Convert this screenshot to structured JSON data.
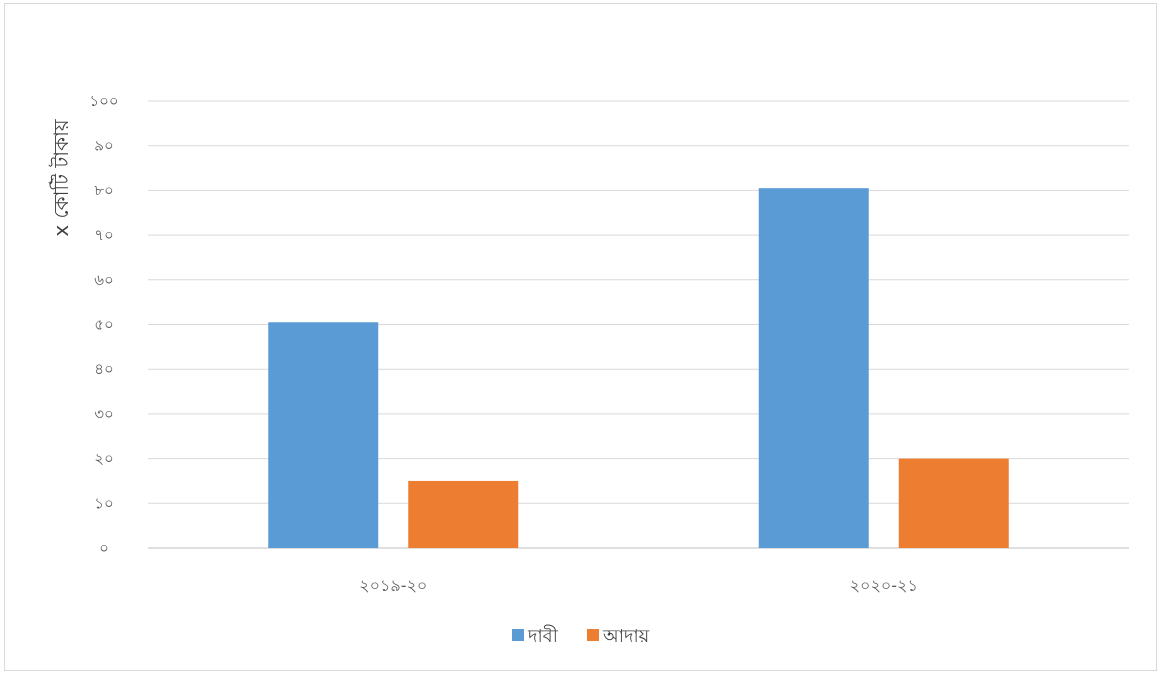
{
  "chart_data": {
    "type": "bar",
    "title": "",
    "xlabel": "",
    "ylabel": "x কোটি টাকায়",
    "categories": [
      "২০১৯-২০",
      "২০২০-২১"
    ],
    "series": [
      {
        "name": "দাবী",
        "color": "#5B9BD5",
        "values": [
          50.5,
          80.5
        ]
      },
      {
        "name": "আদায়",
        "color": "#ED7D31",
        "values": [
          15,
          20
        ]
      }
    ],
    "ylim": [
      0,
      100
    ],
    "yticks": [
      0,
      10,
      20,
      30,
      40,
      50,
      60,
      70,
      80,
      90,
      100
    ],
    "ytick_labels": [
      "০",
      "১০",
      "২০",
      "৩০",
      "৪০",
      "৫০",
      "৬০",
      "৭০",
      "৮০",
      "৯০",
      "১০০"
    ],
    "grid": true,
    "legend_position": "bottom"
  }
}
